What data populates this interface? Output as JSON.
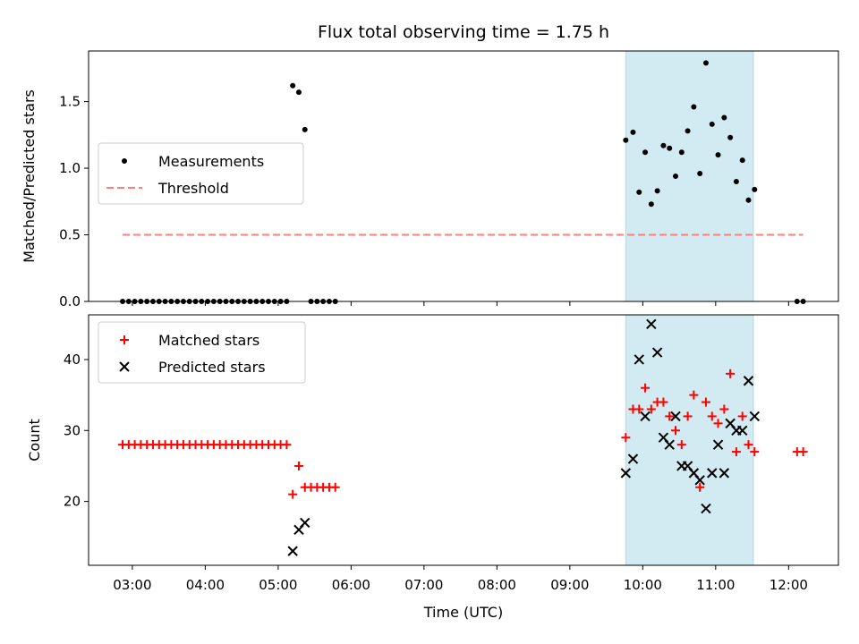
{
  "chart_data": {
    "type": "scatter",
    "title": "Flux total observing time = 1.75 h",
    "xlabel": "Time (UTC)",
    "x_ticks": [
      "03:00",
      "04:00",
      "05:00",
      "06:00",
      "07:00",
      "08:00",
      "09:00",
      "10:00",
      "11:00",
      "12:00"
    ],
    "xlim": [
      "02:24",
      "12:41"
    ],
    "highlight_span": {
      "from": "09:46",
      "to": "11:31",
      "color": "#add8e6"
    },
    "panels": [
      {
        "ylabel": "Matched/Predicted stars",
        "ylim": [
          0,
          1.88
        ],
        "y_ticks": [
          0.0,
          0.5,
          1.0,
          1.5
        ],
        "y_tick_labels": [
          "0.0",
          "0.5",
          "1.0",
          "1.5"
        ],
        "legend_position": "center-left",
        "series": [
          {
            "name": "Measurements",
            "marker": "dot",
            "color": "#000000",
            "x": [
              "02:52",
              "02:57",
              "03:02",
              "03:07",
              "03:12",
              "03:17",
              "03:22",
              "03:27",
              "03:32",
              "03:37",
              "03:42",
              "03:47",
              "03:52",
              "03:57",
              "04:02",
              "04:07",
              "04:12",
              "04:17",
              "04:22",
              "04:27",
              "04:32",
              "04:37",
              "04:42",
              "04:47",
              "04:52",
              "04:57",
              "05:02",
              "05:07",
              "05:12",
              "05:17",
              "05:22",
              "05:27",
              "05:32",
              "05:37",
              "05:42",
              "05:47",
              "09:46",
              "09:52",
              "09:57",
              "10:02",
              "10:07",
              "10:12",
              "10:17",
              "10:22",
              "10:27",
              "10:32",
              "10:37",
              "10:42",
              "10:47",
              "10:52",
              "10:57",
              "11:02",
              "11:07",
              "11:12",
              "11:17",
              "11:22",
              "11:27",
              "11:32",
              "12:07",
              "12:12"
            ],
            "y": [
              0,
              0,
              0,
              0,
              0,
              0,
              0,
              0,
              0,
              0,
              0,
              0,
              0,
              0,
              0,
              0,
              0,
              0,
              0,
              0,
              0,
              0,
              0,
              0,
              0,
              0,
              0,
              0,
              1.62,
              1.57,
              1.29,
              0,
              0,
              0,
              0,
              0,
              1.21,
              1.27,
              0.82,
              1.12,
              0.73,
              0.83,
              1.17,
              1.15,
              0.94,
              1.12,
              1.28,
              1.46,
              0.96,
              1.79,
              1.33,
              1.1,
              1.38,
              1.23,
              0.9,
              1.06,
              0.76,
              0.84,
              0,
              0
            ]
          },
          {
            "name": "Threshold",
            "marker": "dashed-line",
            "color": "#ff7f7f",
            "x": [
              "02:52",
              "12:12"
            ],
            "y": [
              0.5,
              0.5
            ]
          }
        ]
      },
      {
        "ylabel": "Count",
        "ylim": [
          11.0,
          46.3
        ],
        "y_ticks": [
          20,
          30,
          40
        ],
        "y_tick_labels": [
          "20",
          "30",
          "40"
        ],
        "legend_position": "top-left",
        "series": [
          {
            "name": "Matched stars",
            "marker": "plus",
            "color": "#ff0000",
            "x": [
              "02:52",
              "02:57",
              "03:02",
              "03:07",
              "03:12",
              "03:17",
              "03:22",
              "03:27",
              "03:32",
              "03:37",
              "03:42",
              "03:47",
              "03:52",
              "03:57",
              "04:02",
              "04:07",
              "04:12",
              "04:17",
              "04:22",
              "04:27",
              "04:32",
              "04:37",
              "04:42",
              "04:47",
              "04:52",
              "04:57",
              "05:02",
              "05:07",
              "05:12",
              "05:17",
              "05:22",
              "05:27",
              "05:32",
              "05:37",
              "05:42",
              "05:47",
              "09:46",
              "09:52",
              "09:57",
              "10:02",
              "10:07",
              "10:12",
              "10:17",
              "10:22",
              "10:27",
              "10:32",
              "10:37",
              "10:42",
              "10:47",
              "10:52",
              "10:57",
              "11:02",
              "11:07",
              "11:12",
              "11:17",
              "11:22",
              "11:27",
              "11:32",
              "12:07",
              "12:12"
            ],
            "y": [
              28,
              28,
              28,
              28,
              28,
              28,
              28,
              28,
              28,
              28,
              28,
              28,
              28,
              28,
              28,
              28,
              28,
              28,
              28,
              28,
              28,
              28,
              28,
              28,
              28,
              28,
              28,
              28,
              21,
              25,
              22,
              22,
              22,
              22,
              22,
              22,
              29,
              33,
              33,
              36,
              33,
              34,
              34,
              32,
              30,
              28,
              32,
              35,
              22,
              34,
              32,
              31,
              33,
              38,
              27,
              32,
              28,
              27,
              27,
              27
            ]
          },
          {
            "name": "Predicted stars",
            "marker": "x",
            "color": "#000000",
            "x": [
              "05:12",
              "05:17",
              "05:22",
              "09:46",
              "09:52",
              "09:57",
              "10:02",
              "10:07",
              "10:12",
              "10:17",
              "10:22",
              "10:27",
              "10:32",
              "10:37",
              "10:42",
              "10:47",
              "10:52",
              "10:57",
              "11:02",
              "11:07",
              "11:12",
              "11:17",
              "11:22",
              "11:27",
              "11:32"
            ],
            "y": [
              13,
              16,
              17,
              24,
              26,
              40,
              32,
              45,
              41,
              29,
              28,
              32,
              25,
              25,
              24,
              23,
              19,
              24,
              28,
              24,
              31,
              30,
              30,
              37,
              32
            ]
          }
        ]
      }
    ]
  }
}
